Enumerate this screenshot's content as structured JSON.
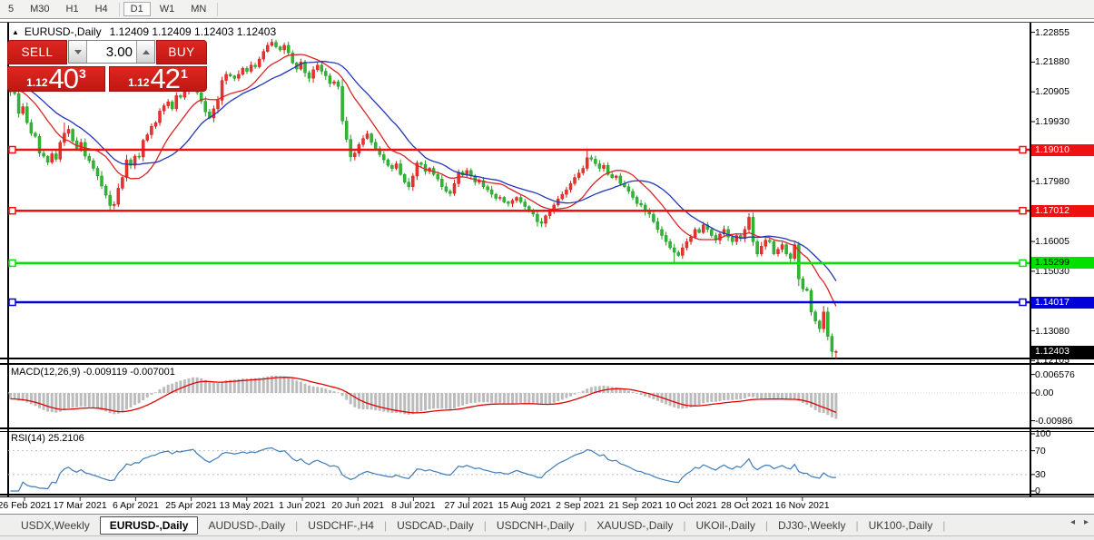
{
  "toolbar": {
    "timeframes": [
      "5",
      "M30",
      "H1",
      "H4",
      "D1",
      "W1",
      "MN"
    ],
    "active": "D1"
  },
  "chart_header": {
    "collapse_icon": "▲",
    "symbol": "EURUSD-,Daily",
    "ohlc": "1.12409 1.12409 1.12403 1.12403"
  },
  "trade_panel": {
    "sell_label": "SELL",
    "buy_label": "BUY",
    "volume": "3.00",
    "sell_price_prefix": "1.12",
    "sell_price_big": "40",
    "sell_price_sup": "3",
    "buy_price_prefix": "1.12",
    "buy_price_big": "42",
    "buy_price_sup": "1"
  },
  "chart_data": {
    "type": "candlestick",
    "symbol": "EURUSD-",
    "timeframe": "Daily",
    "up_color": "#e8322e",
    "up_stroke": "#d21f1c",
    "down_color": "#32b434",
    "down_stroke": "#1f9e23",
    "ma_fast": {
      "period": 12,
      "color": "#d92525"
    },
    "ma_slow": {
      "period": 21,
      "color": "#2336b8"
    },
    "price_ticks": [
      {
        "label": "1.22855",
        "value": 1.22855
      },
      {
        "label": "1.21880",
        "value": 1.2188
      },
      {
        "label": "1.20905",
        "value": 1.20905
      },
      {
        "label": "1.19930",
        "value": 1.1993
      },
      {
        "label": "1.17980",
        "value": 1.1798
      },
      {
        "label": "1.16005",
        "value": 1.16005
      },
      {
        "label": "1.15030",
        "value": 1.1503
      },
      {
        "label": "1.13080",
        "value": 1.1308
      },
      {
        "label": "1.12105",
        "value": 1.12105
      }
    ],
    "hlines": [
      {
        "label": "1.19010",
        "value": 1.1901,
        "color": "#ee1111",
        "text_color": "#ffffff"
      },
      {
        "label": "1.17012",
        "value": 1.17012,
        "color": "#ee1111",
        "text_color": "#ffffff"
      },
      {
        "label": "1.15299",
        "value": 1.15299,
        "color": "#00e100",
        "text_color": "#000000"
      },
      {
        "label": "1.14017",
        "value": 1.14017,
        "color": "#0000d9",
        "text_color": "#ffffff"
      }
    ],
    "current_price": {
      "label": "1.12403",
      "value": 1.12403,
      "bg": "#000000",
      "text_color": "#ffffff"
    },
    "x_labels": [
      "26 Feb 2021",
      "17 Mar 2021",
      "6 Apr 2021",
      "25 Apr 2021",
      "13 May 2021",
      "1 Jun 2021",
      "20 Jun 2021",
      "8 Jul 2021",
      "27 Jul 2021",
      "15 Aug 2021",
      "2 Sep 2021",
      "21 Sep 2021",
      "10 Oct 2021",
      "28 Oct 2021",
      "16 Nov 2021"
    ],
    "bars": 200,
    "close_anchors": [
      [
        0,
        1.209
      ],
      [
        1,
        1.2085
      ],
      [
        2,
        1.202
      ],
      [
        3,
        1.2042
      ],
      [
        4,
        1.199
      ],
      [
        5,
        1.1955
      ],
      [
        6,
        1.1945
      ],
      [
        7,
        1.189
      ],
      [
        8,
        1.188
      ],
      [
        9,
        1.186
      ],
      [
        10,
        1.1888
      ],
      [
        11,
        1.187
      ],
      [
        12,
        1.1925
      ],
      [
        13,
        1.1955
      ],
      [
        14,
        1.1968
      ],
      [
        15,
        1.193
      ],
      [
        16,
        1.1905
      ],
      [
        17,
        1.1925
      ],
      [
        18,
        1.188
      ],
      [
        19,
        1.1865
      ],
      [
        21,
        1.1815
      ],
      [
        22,
        1.1782
      ],
      [
        23,
        1.1752
      ],
      [
        24,
        1.1718
      ],
      [
        25,
        1.1722
      ],
      [
        26,
        1.1775
      ],
      [
        27,
        1.181
      ],
      [
        28,
        1.1868
      ],
      [
        29,
        1.185
      ],
      [
        30,
        1.188
      ],
      [
        31,
        1.1878
      ],
      [
        32,
        1.1932
      ],
      [
        33,
        1.195
      ],
      [
        34,
        1.1978
      ],
      [
        35,
        1.199
      ],
      [
        36,
        1.2028
      ],
      [
        37,
        1.2045
      ],
      [
        38,
        1.2058
      ],
      [
        39,
        1.2035
      ],
      [
        40,
        1.2078
      ],
      [
        41,
        1.2073
      ],
      [
        42,
        1.2093
      ],
      [
        43,
        1.2105
      ],
      [
        44,
        1.2123
      ],
      [
        45,
        1.2088
      ],
      [
        46,
        1.206
      ],
      [
        47,
        1.2025
      ],
      [
        48,
        1.2005
      ],
      [
        49,
        1.2035
      ],
      [
        50,
        1.2063
      ],
      [
        51,
        1.2128
      ],
      [
        52,
        1.2148
      ],
      [
        53,
        1.2143
      ],
      [
        54,
        1.2135
      ],
      [
        55,
        1.2148
      ],
      [
        56,
        1.2168
      ],
      [
        57,
        1.2158
      ],
      [
        58,
        1.2178
      ],
      [
        59,
        1.2173
      ],
      [
        60,
        1.2198
      ],
      [
        61,
        1.2223
      ],
      [
        62,
        1.2243
      ],
      [
        63,
        1.2253
      ],
      [
        64,
        1.2238
      ],
      [
        65,
        1.2228
      ],
      [
        66,
        1.2243
      ],
      [
        67,
        1.2218
      ],
      [
        68,
        1.2185
      ],
      [
        69,
        1.2165
      ],
      [
        70,
        1.2188
      ],
      [
        71,
        1.2153
      ],
      [
        72,
        1.2135
      ],
      [
        73,
        1.2163
      ],
      [
        74,
        1.2178
      ],
      [
        75,
        1.2158
      ],
      [
        76,
        1.2143
      ],
      [
        77,
        1.2118
      ],
      [
        78,
        1.2123
      ],
      [
        79,
        1.2108
      ],
      [
        80,
        1.1995
      ],
      [
        81,
        1.1935
      ],
      [
        82,
        1.1878
      ],
      [
        83,
        1.189
      ],
      [
        84,
        1.1918
      ],
      [
        85,
        1.1938
      ],
      [
        86,
        1.1953
      ],
      [
        87,
        1.1925
      ],
      [
        88,
        1.1905
      ],
      [
        89,
        1.1885
      ],
      [
        90,
        1.1868
      ],
      [
        91,
        1.185
      ],
      [
        92,
        1.184
      ],
      [
        93,
        1.1855
      ],
      [
        94,
        1.182
      ],
      [
        95,
        1.1795
      ],
      [
        96,
        1.178
      ],
      [
        97,
        1.1815
      ],
      [
        98,
        1.1858
      ],
      [
        99,
        1.1853
      ],
      [
        100,
        1.183
      ],
      [
        101,
        1.184
      ],
      [
        102,
        1.182
      ],
      [
        103,
        1.1805
      ],
      [
        104,
        1.178
      ],
      [
        105,
        1.1765
      ],
      [
        106,
        1.1758
      ],
      [
        107,
        1.179
      ],
      [
        108,
        1.1828
      ],
      [
        109,
        1.1818
      ],
      [
        110,
        1.1833
      ],
      [
        111,
        1.1815
      ],
      [
        112,
        1.1795
      ],
      [
        113,
        1.18
      ],
      [
        114,
        1.178
      ],
      [
        115,
        1.177
      ],
      [
        116,
        1.1755
      ],
      [
        117,
        1.1742
      ],
      [
        118,
        1.1745
      ],
      [
        119,
        1.173
      ],
      [
        120,
        1.1725
      ],
      [
        121,
        1.1735
      ],
      [
        122,
        1.1745
      ],
      [
        123,
        1.173
      ],
      [
        124,
        1.1715
      ],
      [
        125,
        1.17
      ],
      [
        126,
        1.169
      ],
      [
        127,
        1.1665
      ],
      [
        128,
        1.166
      ],
      [
        129,
        1.1685
      ],
      [
        130,
        1.17
      ],
      [
        131,
        1.172
      ],
      [
        132,
        1.174
      ],
      [
        133,
        1.1755
      ],
      [
        134,
        1.177
      ],
      [
        135,
        1.179
      ],
      [
        136,
        1.181
      ],
      [
        137,
        1.1825
      ],
      [
        138,
        1.184
      ],
      [
        139,
        1.1875
      ],
      [
        140,
        1.187
      ],
      [
        141,
        1.1855
      ],
      [
        142,
        1.184
      ],
      [
        143,
        1.185
      ],
      [
        144,
        1.182
      ],
      [
        145,
        1.181
      ],
      [
        146,
        1.1815
      ],
      [
        147,
        1.179
      ],
      [
        148,
        1.178
      ],
      [
        149,
        1.1765
      ],
      [
        150,
        1.1745
      ],
      [
        151,
        1.1725
      ],
      [
        152,
        1.172
      ],
      [
        153,
        1.17
      ],
      [
        154,
        1.169
      ],
      [
        155,
        1.1665
      ],
      [
        156,
        1.164
      ],
      [
        157,
        1.162
      ],
      [
        158,
        1.16
      ],
      [
        159,
        1.158
      ],
      [
        160,
        1.1565
      ],
      [
        161,
        1.1555
      ],
      [
        162,
        1.158
      ],
      [
        163,
        1.16
      ],
      [
        164,
        1.1615
      ],
      [
        165,
        1.164
      ],
      [
        166,
        1.163
      ],
      [
        167,
        1.1655
      ],
      [
        168,
        1.164
      ],
      [
        169,
        1.162
      ],
      [
        170,
        1.1605
      ],
      [
        171,
        1.1625
      ],
      [
        172,
        1.164
      ],
      [
        173,
        1.1615
      ],
      [
        174,
        1.16
      ],
      [
        175,
        1.162
      ],
      [
        176,
        1.161
      ],
      [
        177,
        1.164
      ],
      [
        178,
        1.168
      ],
      [
        179,
        1.16
      ],
      [
        180,
        1.156
      ],
      [
        181,
        1.1585
      ],
      [
        182,
        1.1605
      ],
      [
        183,
        1.16
      ],
      [
        184,
        1.156
      ],
      [
        185,
        1.1575
      ],
      [
        186,
        1.159
      ],
      [
        187,
        1.156
      ],
      [
        188,
        1.1545
      ],
      [
        189,
        1.159
      ],
      [
        190,
        1.1478
      ],
      [
        191,
        1.1445
      ],
      [
        192,
        1.144
      ],
      [
        193,
        1.137
      ],
      [
        194,
        1.134
      ],
      [
        195,
        1.1315
      ],
      [
        196,
        1.137
      ],
      [
        197,
        1.129
      ],
      [
        198,
        1.124
      ],
      [
        199,
        1.12403
      ]
    ],
    "wick_marks": [
      {
        "t": 13,
        "high": 1.199
      },
      {
        "t": 24,
        "low": 1.17
      },
      {
        "t": 63,
        "high": 1.2264
      },
      {
        "t": 82,
        "low": 1.1862
      },
      {
        "t": 139,
        "high": 1.1905
      },
      {
        "t": 160,
        "low": 1.1532
      },
      {
        "t": 178,
        "high": 1.1693
      },
      {
        "t": 199,
        "low": 1.1216
      }
    ],
    "macd": {
      "title": "MACD(12,26,9)",
      "value": "-0.009119",
      "signal": "-0.007001",
      "axis": [
        {
          "label": "0.006576",
          "value": 0.006576
        },
        {
          "label": "0.00",
          "value": 0
        },
        {
          "label": "-0.00986",
          "value": -0.00986
        }
      ],
      "hist_color": "#bcbcbc",
      "signal_color": "#e00000"
    },
    "rsi": {
      "title": "RSI(14)",
      "value": "25.2106",
      "axis": [
        {
          "label": "100",
          "value": 100
        },
        {
          "label": "70",
          "value": 70
        },
        {
          "label": "30",
          "value": 30
        },
        {
          "label": "0",
          "value": 0
        }
      ],
      "levels": [
        70,
        30
      ],
      "color": "#3f7cba"
    }
  },
  "tabs": {
    "items": [
      "USDX,Weekly",
      "EURUSD-,Daily",
      "AUDUSD-,Daily",
      "USDCHF-,H4",
      "USDCAD-,Daily",
      "USDCNH-,Daily",
      "XAUUSD-,Daily",
      "UKOil-,Daily",
      "DJ30-,Weekly",
      "UK100-,Daily"
    ],
    "active": "EURUSD-,Daily",
    "scroll_left_icon": "◂",
    "scroll_right_icon": "▸"
  }
}
